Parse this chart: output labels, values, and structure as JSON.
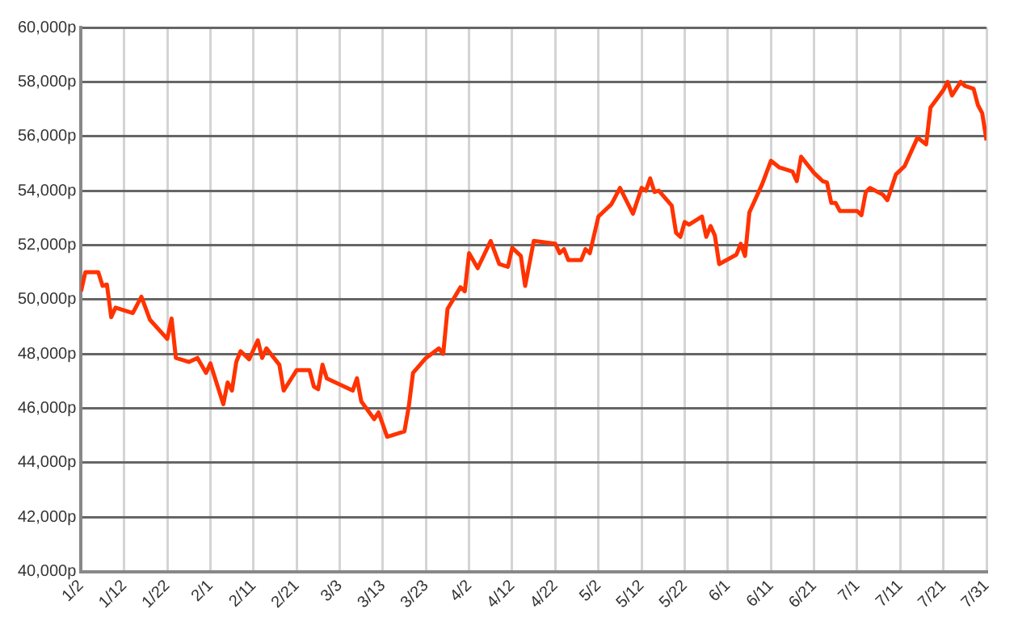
{
  "chart_data": {
    "type": "line",
    "x": [
      "--01-02",
      "--01-03",
      "--01-06",
      "--01-07",
      "--01-08",
      "--01-09",
      "--01-10",
      "--01-14",
      "--01-16",
      "--01-18",
      "--01-22",
      "--01-23",
      "--01-24",
      "--01-27",
      "--01-29",
      "--01-31",
      "--02-01",
      "--02-04",
      "--02-05",
      "--02-06",
      "--02-07",
      "--02-08",
      "--02-10",
      "--02-12",
      "--02-13",
      "--02-14",
      "--02-17",
      "--02-18",
      "--02-20",
      "--02-21",
      "--02-24",
      "--02-25",
      "--02-26",
      "--02-27",
      "--02-28",
      "--03-06",
      "--03-07",
      "--03-08",
      "--03-11",
      "--03-12",
      "--03-14",
      "--03-18",
      "--03-19",
      "--03-20",
      "--03-23",
      "--03-26",
      "--03-27",
      "--03-28",
      "--03-31",
      "--04-01",
      "--04-02",
      "--04-04",
      "--04-07",
      "--04-09",
      "--04-11",
      "--04-12",
      "--04-13",
      "--04-14",
      "--04-15",
      "--04-17",
      "--04-22",
      "--04-23",
      "--04-24",
      "--04-25",
      "--04-28",
      "--04-29",
      "--04-30",
      "--05-02",
      "--05-05",
      "--05-07",
      "--05-10",
      "--05-12",
      "--05-13",
      "--05-14",
      "--05-15",
      "--05-16",
      "--05-19",
      "--05-20",
      "--05-21",
      "--05-22",
      "--05-23",
      "--05-26",
      "--05-27",
      "--05-28",
      "--05-29",
      "--05-30",
      "--06-03",
      "--06-04",
      "--06-05",
      "--06-06",
      "--06-09",
      "--06-11",
      "--06-13",
      "--06-16",
      "--06-17",
      "--06-18",
      "--06-21",
      "--06-23",
      "--06-24",
      "--06-25",
      "--06-26",
      "--06-27",
      "--07-01",
      "--07-02",
      "--07-03",
      "--07-04",
      "--07-07",
      "--07-08",
      "--07-10",
      "--07-12",
      "--07-15",
      "--07-17",
      "--07-18",
      "--07-21",
      "--07-22",
      "--07-23",
      "--07-25",
      "--07-26",
      "--07-28",
      "--07-29",
      "--07-30",
      "--07-31"
    ],
    "series": [
      {
        "color": "#ff3300",
        "values": [
          50300,
          51000,
          51000,
          50500,
          50550,
          49350,
          49700,
          49500,
          50100,
          49250,
          48550,
          49300,
          47850,
          47700,
          47850,
          47300,
          47650,
          46150,
          46950,
          46650,
          47700,
          48100,
          47800,
          48500,
          47850,
          48200,
          47600,
          46650,
          47150,
          47400,
          47400,
          46800,
          46700,
          47600,
          47100,
          46650,
          47100,
          46250,
          45600,
          45850,
          44950,
          45150,
          46050,
          47300,
          47850,
          48200,
          48000,
          49650,
          50450,
          50300,
          51700,
          51150,
          52150,
          51300,
          51200,
          51900,
          51750,
          51600,
          50500,
          52150,
          52050,
          51700,
          51850,
          51450,
          51450,
          51850,
          51700,
          53050,
          53500,
          54100,
          53150,
          54100,
          54000,
          54450,
          53950,
          54000,
          53450,
          52450,
          52300,
          52850,
          52750,
          53050,
          52300,
          52700,
          52350,
          51300,
          51650,
          52050,
          51600,
          53200,
          54250,
          55100,
          54850,
          54700,
          54350,
          55250,
          54650,
          54350,
          54300,
          53550,
          53550,
          53250,
          53250,
          53100,
          53950,
          54100,
          53850,
          53650,
          54600,
          54900,
          55950,
          55700,
          57050,
          57700,
          58000,
          57500,
          58000,
          57850,
          57750,
          57150,
          56850,
          55850
        ]
      }
    ],
    "xlim": [
      "--01-02",
      "--07-31"
    ],
    "xticks": [
      {
        "value": "--01-02",
        "label": "1/2"
      },
      {
        "value": "--01-12",
        "label": "1/12"
      },
      {
        "value": "--01-22",
        "label": "1/22"
      },
      {
        "value": "--02-01",
        "label": "2/1"
      },
      {
        "value": "--02-11",
        "label": "2/11"
      },
      {
        "value": "--02-21",
        "label": "2/21"
      },
      {
        "value": "--03-03",
        "label": "3/3"
      },
      {
        "value": "--03-13",
        "label": "3/13"
      },
      {
        "value": "--03-23",
        "label": "3/23"
      },
      {
        "value": "--04-02",
        "label": "4/2"
      },
      {
        "value": "--04-12",
        "label": "4/12"
      },
      {
        "value": "--04-22",
        "label": "4/22"
      },
      {
        "value": "--05-02",
        "label": "5/2"
      },
      {
        "value": "--05-12",
        "label": "5/12"
      },
      {
        "value": "--05-22",
        "label": "5/22"
      },
      {
        "value": "--06-01",
        "label": "6/1"
      },
      {
        "value": "--06-11",
        "label": "6/11"
      },
      {
        "value": "--06-21",
        "label": "6/21"
      },
      {
        "value": "--07-01",
        "label": "7/1"
      },
      {
        "value": "--07-11",
        "label": "7/11"
      },
      {
        "value": "--07-21",
        "label": "7/21"
      },
      {
        "value": "--07-31",
        "label": "7/31"
      }
    ],
    "ylim": [
      40000,
      60000
    ],
    "yticks": [
      {
        "value": 40000,
        "label": "40,000p"
      },
      {
        "value": 42000,
        "label": "42,000p"
      },
      {
        "value": 44000,
        "label": "44,000p"
      },
      {
        "value": 46000,
        "label": "46,000p"
      },
      {
        "value": 48000,
        "label": "48,000p"
      },
      {
        "value": 50000,
        "label": "50,000p"
      },
      {
        "value": 52000,
        "label": "52,000p"
      },
      {
        "value": 54000,
        "label": "54,000p"
      },
      {
        "value": 56000,
        "label": "56,000p"
      },
      {
        "value": 58000,
        "label": "58,000p"
      },
      {
        "value": 60000,
        "label": "60,000p"
      }
    ],
    "grid": true,
    "legend": false,
    "marker": "none",
    "line_style": "solid"
  }
}
